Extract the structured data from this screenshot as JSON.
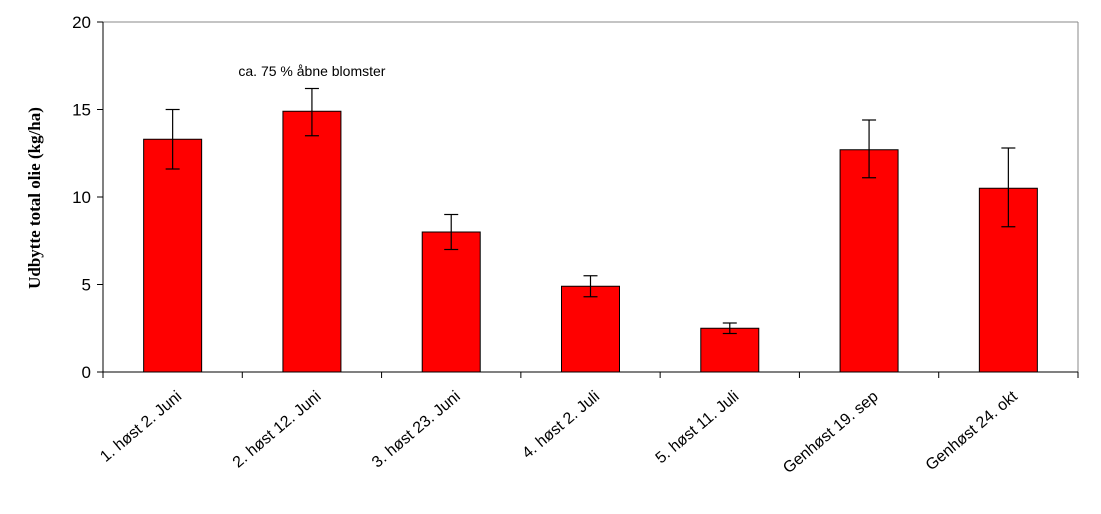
{
  "chart_data": {
    "type": "bar",
    "title": "",
    "xlabel": "",
    "ylabel": "Udbytte total olie (kg/ha)",
    "ylim": [
      0,
      20
    ],
    "yticks": [
      0,
      5,
      10,
      15,
      20
    ],
    "grid": false,
    "categories": [
      "1. høst 2. Juni",
      "2. høst 12. Juni",
      "3. høst 23. Juni",
      "4. høst 2. Juli",
      "5. høst 11. Juli",
      "Genhøst 19. sep",
      "Genhøst 24. okt"
    ],
    "values": [
      13.3,
      14.9,
      8.0,
      4.9,
      2.5,
      12.7,
      10.5
    ],
    "error_low": [
      11.6,
      13.5,
      7.0,
      4.3,
      2.2,
      11.1,
      8.3
    ],
    "error_high": [
      15.0,
      16.2,
      9.0,
      5.5,
      2.8,
      14.4,
      12.8
    ],
    "bar_color": "#ff0000",
    "annotations": [
      {
        "text": "ca. 75 % åbne blomster",
        "category_index": 1
      }
    ]
  }
}
